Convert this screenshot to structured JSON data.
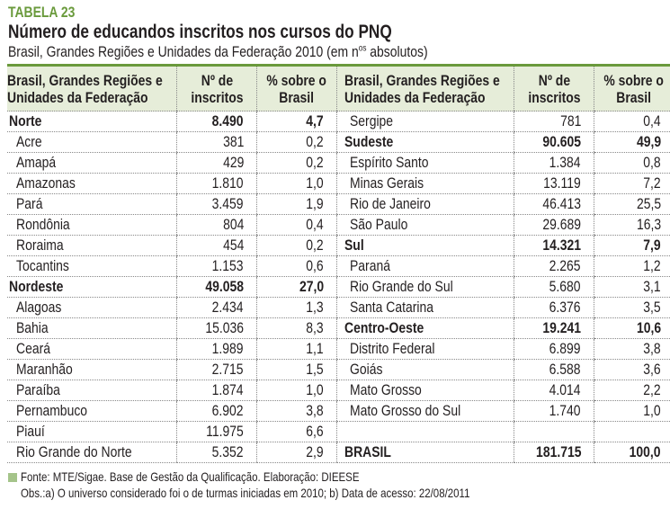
{
  "label": "TABELA 23",
  "title": "Número de educandos inscritos nos cursos do PNQ",
  "subtitle": "Brasil, Grandes Regiões e Unidades da Federação 2010 (em n",
  "subtitle_sup": "os",
  "subtitle_end": " absolutos)",
  "headers": {
    "name_line1": "Brasil, Grandes Regiões e",
    "name_line2": "Unidades da Federação",
    "count_line1": "Nº de",
    "count_line2": "inscritos",
    "pct_line1": "% sobre o",
    "pct_line2": "Brasil"
  },
  "left_rows": [
    {
      "name": "Norte",
      "count": "8.490",
      "pct": "4,7",
      "bold": true
    },
    {
      "name": "Acre",
      "count": "381",
      "pct": "0,2"
    },
    {
      "name": "Amapá",
      "count": "429",
      "pct": "0,2"
    },
    {
      "name": "Amazonas",
      "count": "1.810",
      "pct": "1,0"
    },
    {
      "name": "Pará",
      "count": "3.459",
      "pct": "1,9"
    },
    {
      "name": "Rondônia",
      "count": "804",
      "pct": "0,4"
    },
    {
      "name": "Roraima",
      "count": "454",
      "pct": "0,2"
    },
    {
      "name": "Tocantins",
      "count": "1.153",
      "pct": "0,6"
    },
    {
      "name": "Nordeste",
      "count": "49.058",
      "pct": "27,0",
      "bold": true
    },
    {
      "name": "Alagoas",
      "count": "2.434",
      "pct": "1,3"
    },
    {
      "name": "Bahia",
      "count": "15.036",
      "pct": "8,3"
    },
    {
      "name": "Ceará",
      "count": "1.989",
      "pct": "1,1"
    },
    {
      "name": "Maranhão",
      "count": "2.715",
      "pct": "1,5"
    },
    {
      "name": "Paraíba",
      "count": "1.874",
      "pct": "1,0"
    },
    {
      "name": "Pernambuco",
      "count": "6.902",
      "pct": "3,8"
    },
    {
      "name": "Piauí",
      "count": "11.975",
      "pct": "6,6"
    },
    {
      "name": "Rio Grande do Norte",
      "count": "5.352",
      "pct": "2,9"
    }
  ],
  "right_rows": [
    {
      "name": "Sergipe",
      "count": "781",
      "pct": "0,4"
    },
    {
      "name": "Sudeste",
      "count": "90.605",
      "pct": "49,9",
      "bold": true
    },
    {
      "name": "Espírito Santo",
      "count": "1.384",
      "pct": "0,8"
    },
    {
      "name": "Minas Gerais",
      "count": "13.119",
      "pct": "7,2"
    },
    {
      "name": "Rio de Janeiro",
      "count": "46.413",
      "pct": "25,5"
    },
    {
      "name": "São Paulo",
      "count": "29.689",
      "pct": "16,3"
    },
    {
      "name": "Sul",
      "count": "14.321",
      "pct": "7,9",
      "bold": true
    },
    {
      "name": "Paraná",
      "count": "2.265",
      "pct": "1,2"
    },
    {
      "name": "Rio Grande do Sul",
      "count": "5.680",
      "pct": "3,1"
    },
    {
      "name": "Santa Catarina",
      "count": "6.376",
      "pct": "3,5"
    },
    {
      "name": "Centro-Oeste",
      "count": "19.241",
      "pct": "10,6",
      "bold": true
    },
    {
      "name": "Distrito Federal",
      "count": "6.899",
      "pct": "3,8"
    },
    {
      "name": "Goiás",
      "count": "6.588",
      "pct": "3,6"
    },
    {
      "name": "Mato Grosso",
      "count": "4.014",
      "pct": "2,2"
    },
    {
      "name": "Mato Grosso do Sul",
      "count": "1.740",
      "pct": "1,0"
    },
    {
      "name": "",
      "count": "",
      "pct": ""
    },
    {
      "name": "BRASIL",
      "count": "181.715",
      "pct": "100,0",
      "bold": true
    }
  ],
  "footer": {
    "source": "Fonte: MTE/Sigae. Base de Gestão da Qualificação. Elaboração: DIEESE",
    "notes": "Obs.:a) O universo considerado foi o de turmas iniciadas em 2010; b) Data de acesso: 22/08/2011"
  },
  "colors": {
    "accent": "#6a9a3c",
    "header_bg": "#e6edd9"
  }
}
